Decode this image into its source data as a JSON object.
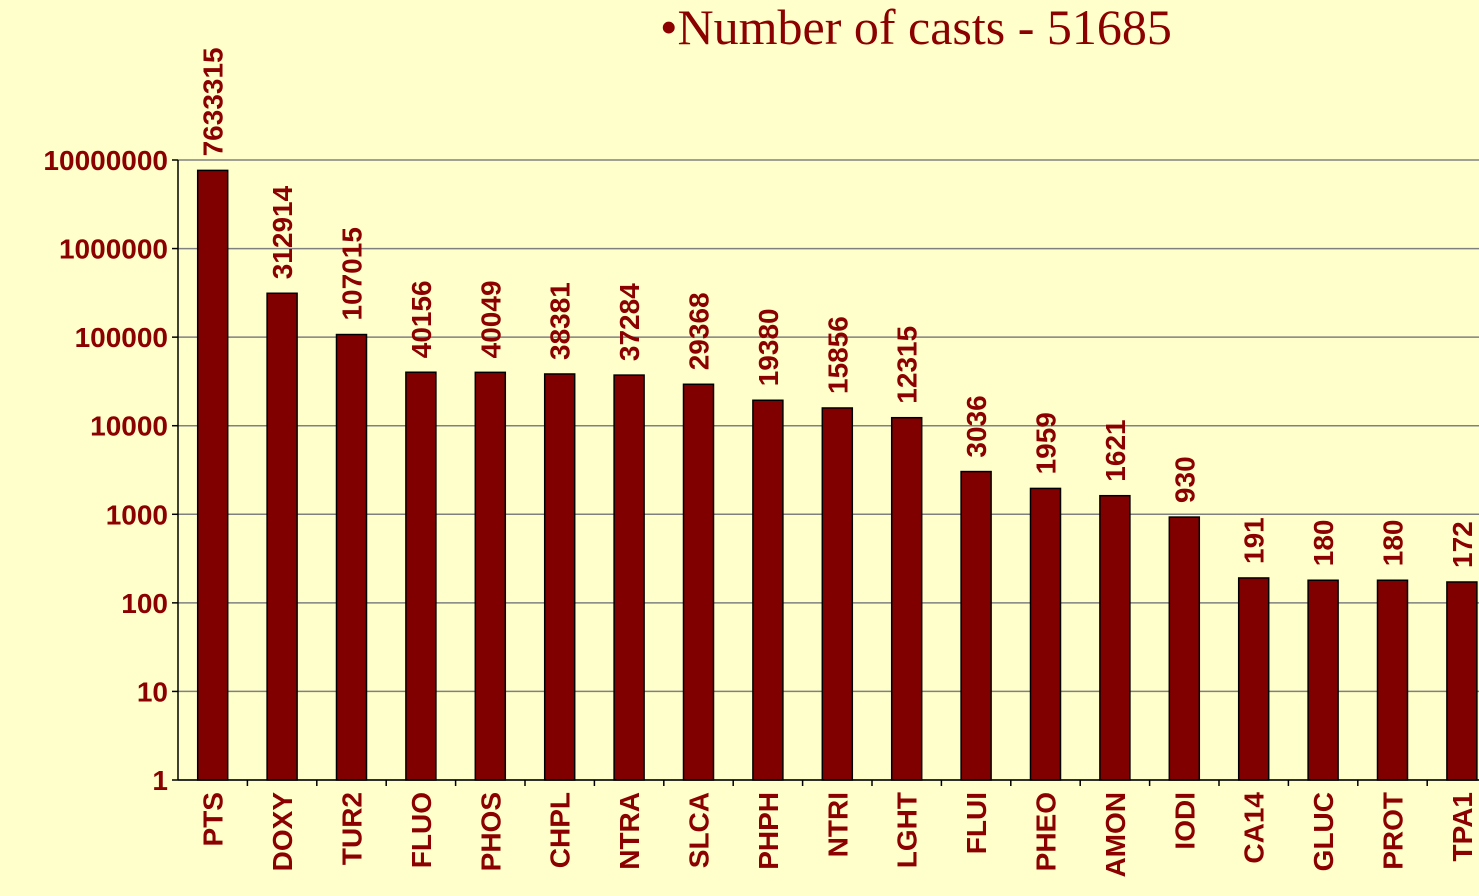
{
  "chart_data": {
    "type": "bar",
    "title": "•Number of casts - 51685",
    "categories": [
      "PTS",
      "DOXY",
      "TUR2",
      "FLUO",
      "PHOS",
      "CHPL",
      "NTRA",
      "SLCA",
      "PHPH",
      "NTRI",
      "LGHT",
      "FLUI",
      "PHEO",
      "AMON",
      "IODI",
      "CA14",
      "GLUC",
      "PROT",
      "TPA1"
    ],
    "values": [
      7633315,
      312914,
      107015,
      40156,
      40049,
      38381,
      37284,
      29368,
      19380,
      15856,
      12315,
      3036,
      1959,
      1621,
      930,
      191,
      180,
      180,
      172
    ],
    "color": "#800000",
    "log_scale": true,
    "ylim": [
      1,
      10000000
    ],
    "yticks": [
      1,
      10,
      100,
      1000,
      10000,
      100000,
      1000000,
      10000000
    ],
    "grid": true
  }
}
